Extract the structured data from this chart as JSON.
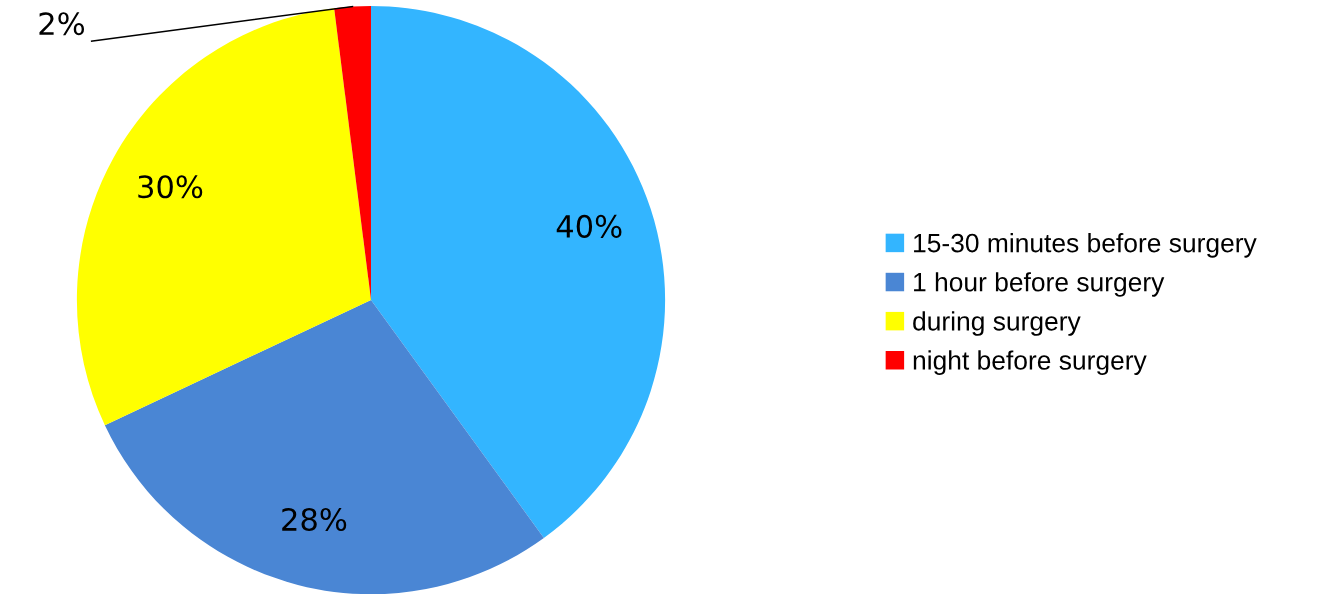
{
  "chart_data": {
    "type": "pie",
    "categories": [
      "15-30 minutes before surgery",
      "1 hour before surgery",
      "during surgery",
      "night before surgery"
    ],
    "values": [
      40,
      28,
      30,
      2
    ],
    "colors": [
      "#33b5ff",
      "#4a86d4",
      "#ffff00",
      "#ff0000"
    ],
    "value_labels": [
      "40%",
      "28%",
      "30%",
      "2%"
    ],
    "legend": "right"
  }
}
